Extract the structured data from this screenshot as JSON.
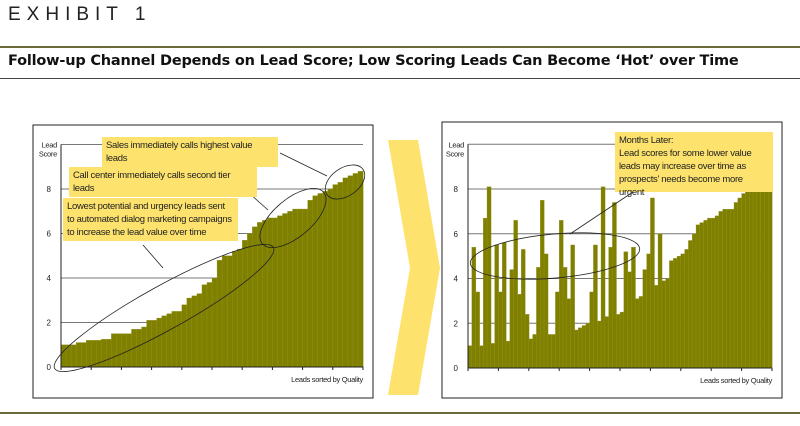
{
  "header": {
    "exhibit": "EXHIBIT 1",
    "title": "Follow-up Channel Depends on Lead Score; Low Scoring Leads Can Become ‘Hot’ over Time"
  },
  "colors": {
    "bar": "#808000",
    "callout": "#fde36d",
    "chevron": "#fde36d",
    "rule": "#6b6b3a"
  },
  "chart_data": [
    {
      "type": "bar",
      "ylabel": "Lead Score",
      "xlabel": "Leads sorted by Quality",
      "ylim": [
        0,
        10
      ],
      "yticks": [
        0,
        2,
        4,
        6,
        8
      ],
      "grid": true,
      "values": [
        1.0,
        1.0,
        1.0,
        1.1,
        1.1,
        1.2,
        1.2,
        1.2,
        1.25,
        1.25,
        1.5,
        1.5,
        1.5,
        1.5,
        1.7,
        1.7,
        1.8,
        2.1,
        2.1,
        2.2,
        2.3,
        2.4,
        2.5,
        2.5,
        2.8,
        3.1,
        3.2,
        3.3,
        3.7,
        3.8,
        4.0,
        4.8,
        5.0,
        5.0,
        5.2,
        5.3,
        5.7,
        6.0,
        6.3,
        6.5,
        6.6,
        6.7,
        6.7,
        6.8,
        6.9,
        7.0,
        7.1,
        7.1,
        7.1,
        7.5,
        7.7,
        7.8,
        7.9,
        8.0,
        8.2,
        8.3,
        8.5,
        8.6,
        8.7,
        8.8
      ],
      "annotations": [
        "Sales immediately calls highest value leads",
        "Call center immediately calls second tier leads",
        "Lowest potential and urgency leads sent to automated dialog marketing campaigns to increase the lead value over time"
      ]
    },
    {
      "type": "bar",
      "ylabel": "Lead Score",
      "xlabel": "Leads sorted by Quality",
      "ylim": [
        0,
        10
      ],
      "yticks": [
        0,
        2,
        4,
        6,
        8
      ],
      "grid": true,
      "values": [
        1.0,
        5.4,
        3.4,
        1.0,
        6.7,
        8.1,
        1.1,
        5.5,
        3.4,
        5.6,
        1.2,
        4.4,
        6.6,
        3.3,
        5.3,
        2.4,
        1.3,
        1.5,
        4.5,
        7.5,
        5.1,
        1.5,
        1.5,
        3.4,
        6.6,
        4.5,
        3.1,
        5.5,
        1.7,
        1.8,
        1.9,
        2.0,
        3.4,
        5.5,
        2.1,
        8.1,
        2.3,
        5.4,
        7.4,
        2.4,
        2.5,
        5.2,
        4.3,
        5.4,
        3.1,
        3.2,
        4.4,
        5.1,
        7.6,
        3.7,
        6.0,
        3.9,
        4.0,
        4.8,
        4.9,
        5.0,
        5.1,
        5.3,
        5.7,
        6.0,
        6.4,
        6.5,
        6.6,
        6.7,
        6.7,
        6.8,
        7.0,
        7.1,
        7.1,
        7.1,
        7.4,
        7.6,
        7.8,
        8.0,
        8.0,
        8.0,
        8.0,
        8.0,
        8.0,
        8.0
      ],
      "annotations": [
        "Months Later:",
        "Lead scores for some lower value leads may increase over time as prospects’ needs become more urgent"
      ]
    }
  ]
}
